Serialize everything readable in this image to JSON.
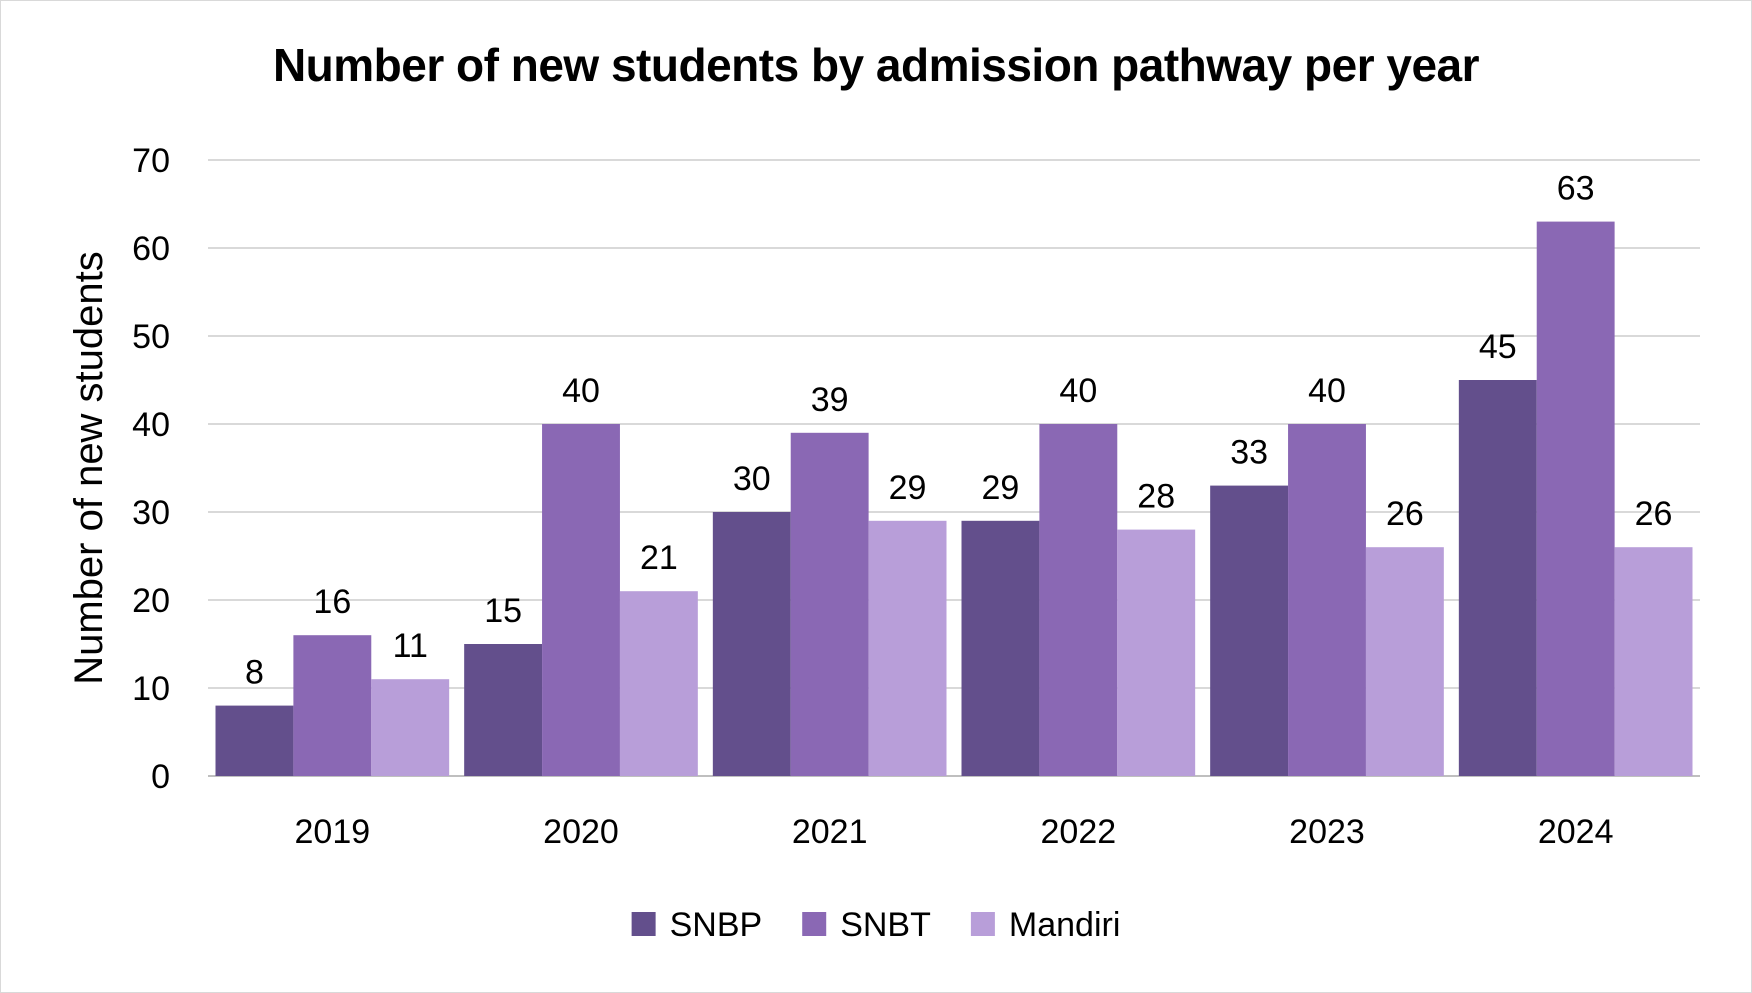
{
  "chart_data": {
    "type": "bar",
    "title": "Number of new students by admission pathway per year",
    "xlabel": "",
    "ylabel": "Number of new students",
    "categories": [
      "2019",
      "2020",
      "2021",
      "2022",
      "2023",
      "2024"
    ],
    "series": [
      {
        "name": "SNBP",
        "color": "#634f8c",
        "values": [
          8,
          15,
          30,
          29,
          33,
          45
        ]
      },
      {
        "name": "SNBT",
        "color": "#8a68b4",
        "values": [
          16,
          40,
          39,
          40,
          40,
          63
        ]
      },
      {
        "name": "Mandiri",
        "color": "#b89ed9",
        "values": [
          11,
          21,
          29,
          28,
          26,
          26
        ]
      }
    ],
    "ylim": [
      0,
      70
    ],
    "yticks": [
      0,
      10,
      20,
      30,
      40,
      50,
      60,
      70
    ],
    "grid": true,
    "legend": "bottom-center",
    "data_labels": true
  }
}
